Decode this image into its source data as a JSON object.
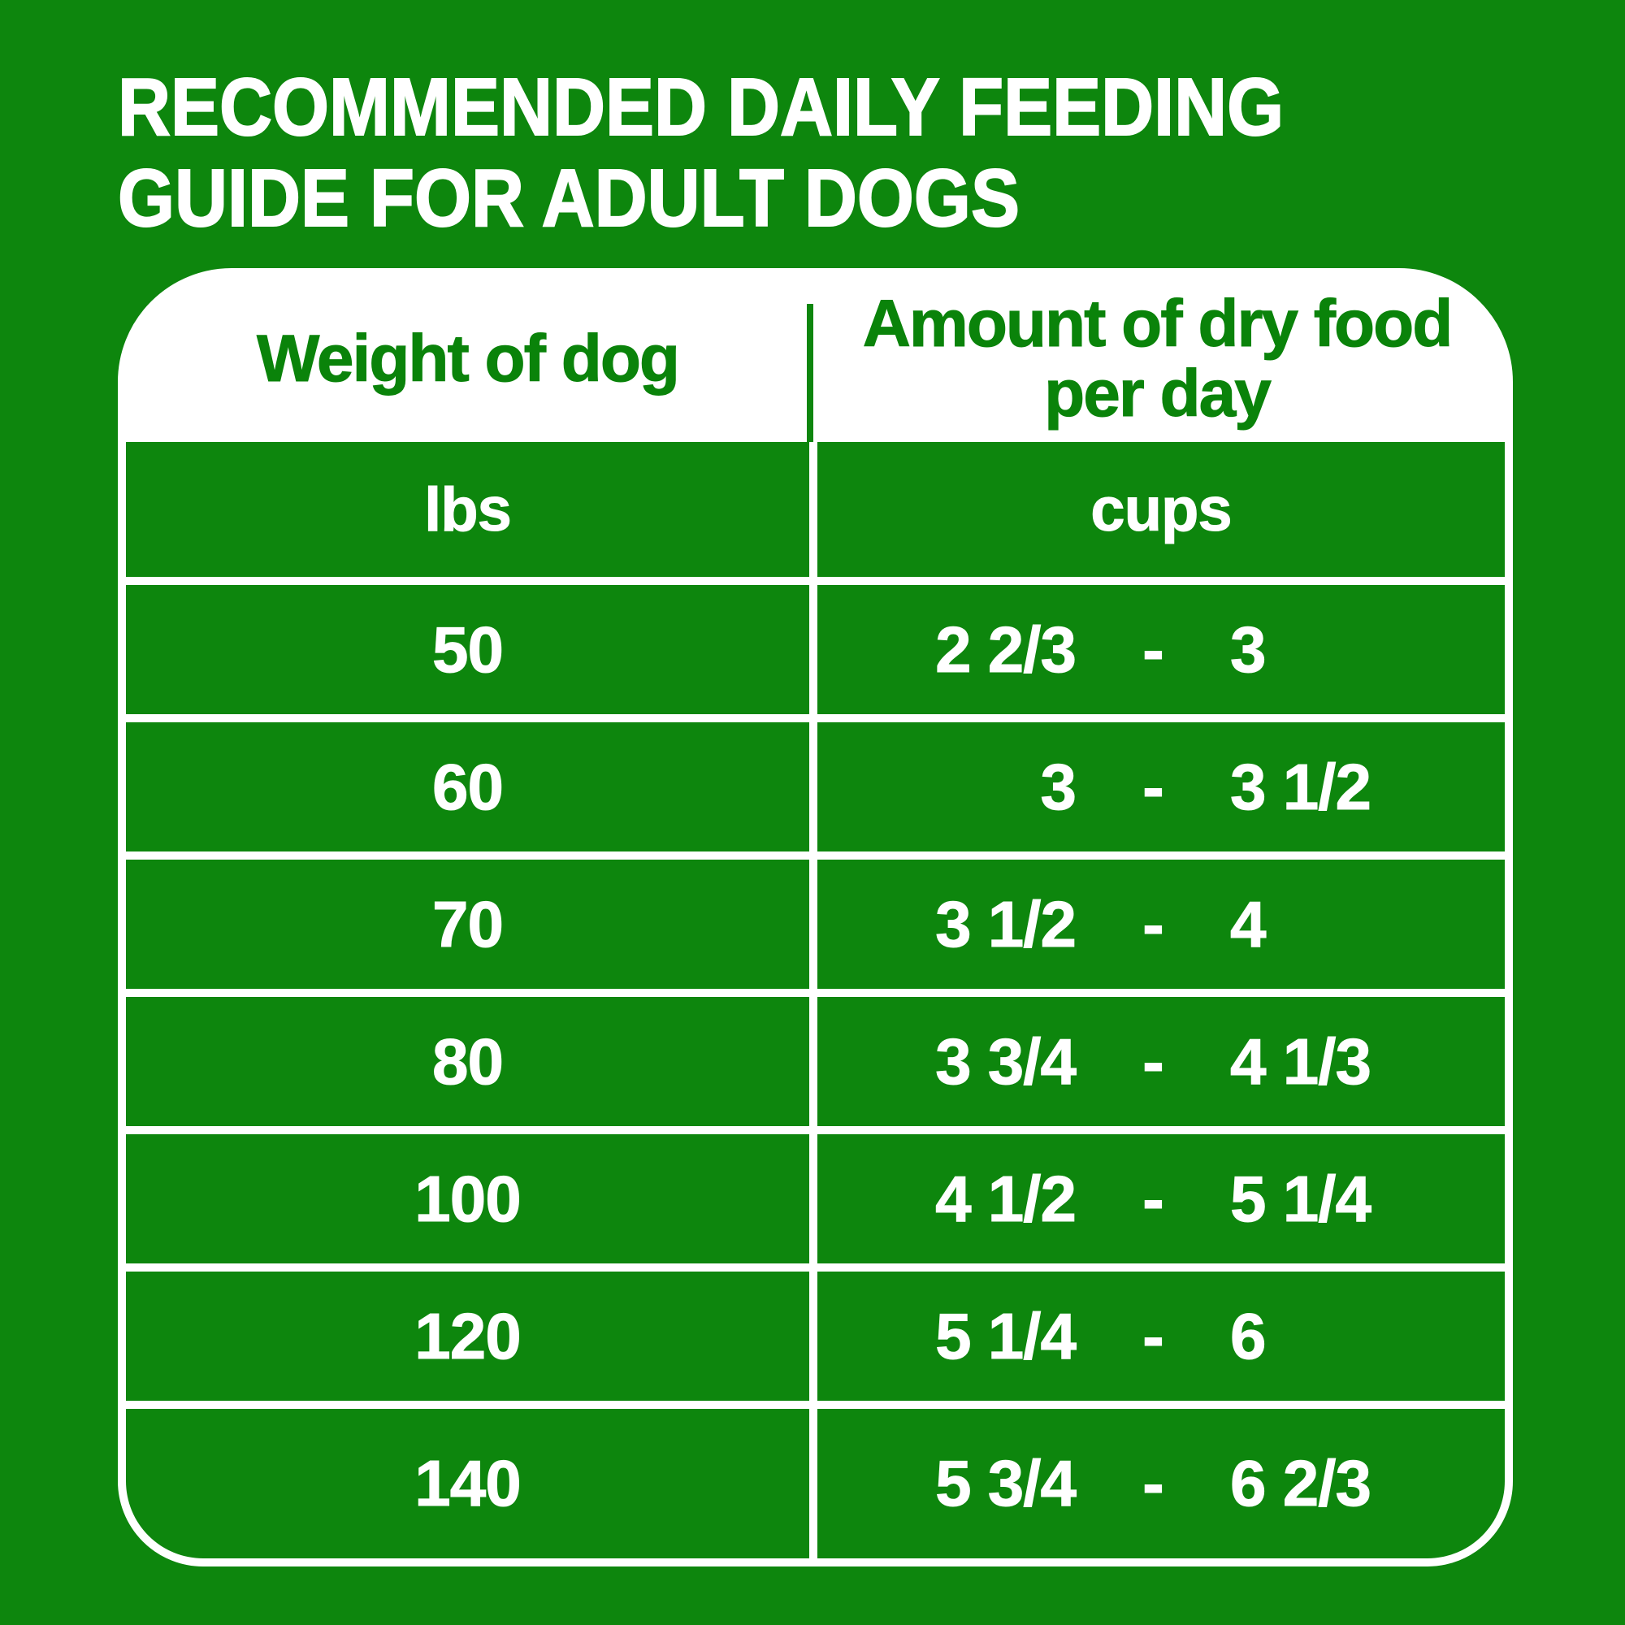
{
  "title": {
    "line1": "RECOMMENDED DAILY FEEDING",
    "line2": "GUIDE FOR ADULT DOGS"
  },
  "table": {
    "columns": [
      {
        "header": "Weight of dog",
        "unit": "lbs"
      },
      {
        "header": "Amount of dry food per day",
        "unit": "cups"
      }
    ],
    "range_separator": "-",
    "rows": [
      {
        "weight": "50",
        "min": "2 2/3",
        "max": "3"
      },
      {
        "weight": "60",
        "min": "3",
        "max": "3 1/2"
      },
      {
        "weight": "70",
        "min": "3 1/2",
        "max": "4"
      },
      {
        "weight": "80",
        "min": "3 3/4",
        "max": "4 1/3"
      },
      {
        "weight": "100",
        "min": "4 1/2",
        "max": "5 1/4"
      },
      {
        "weight": "120",
        "min": "5 1/4",
        "max": "6"
      },
      {
        "weight": "140",
        "min": "5 3/4",
        "max": "6 2/3"
      }
    ]
  },
  "colors": {
    "background_green": "#0d860d",
    "table_white": "#ffffff",
    "header_text_green": "#0a830a",
    "row_text_white": "#ffffff"
  },
  "chart_data": {
    "type": "table",
    "title": "RECOMMENDED DAILY FEEDING GUIDE FOR ADULT DOGS",
    "columns": [
      "Weight of dog (lbs)",
      "Amount of dry food per day (cups)"
    ],
    "rows": [
      [
        50,
        "2 2/3 - 3"
      ],
      [
        60,
        "3 - 3 1/2"
      ],
      [
        70,
        "3 1/2 - 4"
      ],
      [
        80,
        "3 3/4 - 4 1/3"
      ],
      [
        100,
        "4 1/2 - 5 1/4"
      ],
      [
        120,
        "5 1/4 - 6"
      ],
      [
        140,
        "5 3/4 - 6 2/3"
      ]
    ]
  }
}
